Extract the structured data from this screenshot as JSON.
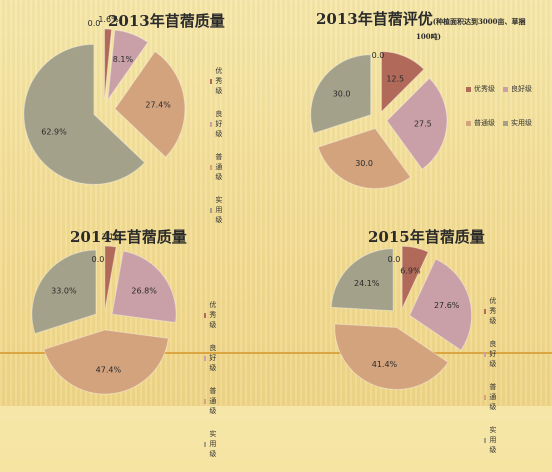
{
  "chart_data": [
    {
      "type": "pie",
      "title": "2013年苜蓿质量",
      "categories": [
        "优秀级",
        "良好级",
        "普通级",
        "实用级"
      ],
      "series": [
        {
          "values": [
            1.6,
            8.1,
            27.4,
            62.9
          ]
        }
      ],
      "extra_labels": [
        "0.0"
      ],
      "legend_position": "right",
      "value_labels": [
        "1.6%",
        "8.1%",
        "27.4%",
        "62.9%"
      ]
    },
    {
      "type": "pie",
      "title": "2013年苜蓿评优",
      "subtitle_line1": "(种植面积达到3000亩、草捆",
      "subtitle_line2": "100吨)",
      "categories": [
        "优秀级",
        "良好级",
        "普通级",
        "实用级"
      ],
      "series": [
        {
          "values": [
            12.5,
            27.5,
            30.0,
            30.0
          ]
        }
      ],
      "extra_labels": [
        "0.0"
      ],
      "legend_position": "right",
      "value_labels": [
        "12.5",
        "27.5",
        "30.0",
        "30.0"
      ]
    },
    {
      "type": "pie",
      "title": "2014年苜蓿质量",
      "categories": [
        "优秀级",
        "良好级",
        "普通级",
        "实用级"
      ],
      "series": [
        {
          "values": [
            3.1,
            26.8,
            47.4,
            33.0
          ]
        }
      ],
      "extra_labels": [
        "0.0"
      ],
      "legend_position": "right",
      "value_labels": [
        "3.1%",
        "26.8%",
        "47.4%",
        "33.0%"
      ]
    },
    {
      "type": "pie",
      "title": "2015年苜蓿质量",
      "categories": [
        "优秀级",
        "良好级",
        "普通级",
        "实用级"
      ],
      "series": [
        {
          "values": [
            6.9,
            27.6,
            41.4,
            24.1
          ]
        }
      ],
      "extra_labels": [
        "0.0"
      ],
      "legend_position": "right",
      "value_labels": [
        "6.9%",
        "27.6%",
        "41.4%",
        "24.1%"
      ]
    }
  ],
  "colors": {
    "excellent": "#b1695a",
    "good": "#c9a0a8",
    "ordinary": "#d3a37e",
    "practical": "#a3a18a",
    "label_text": "#2a2a2a"
  }
}
